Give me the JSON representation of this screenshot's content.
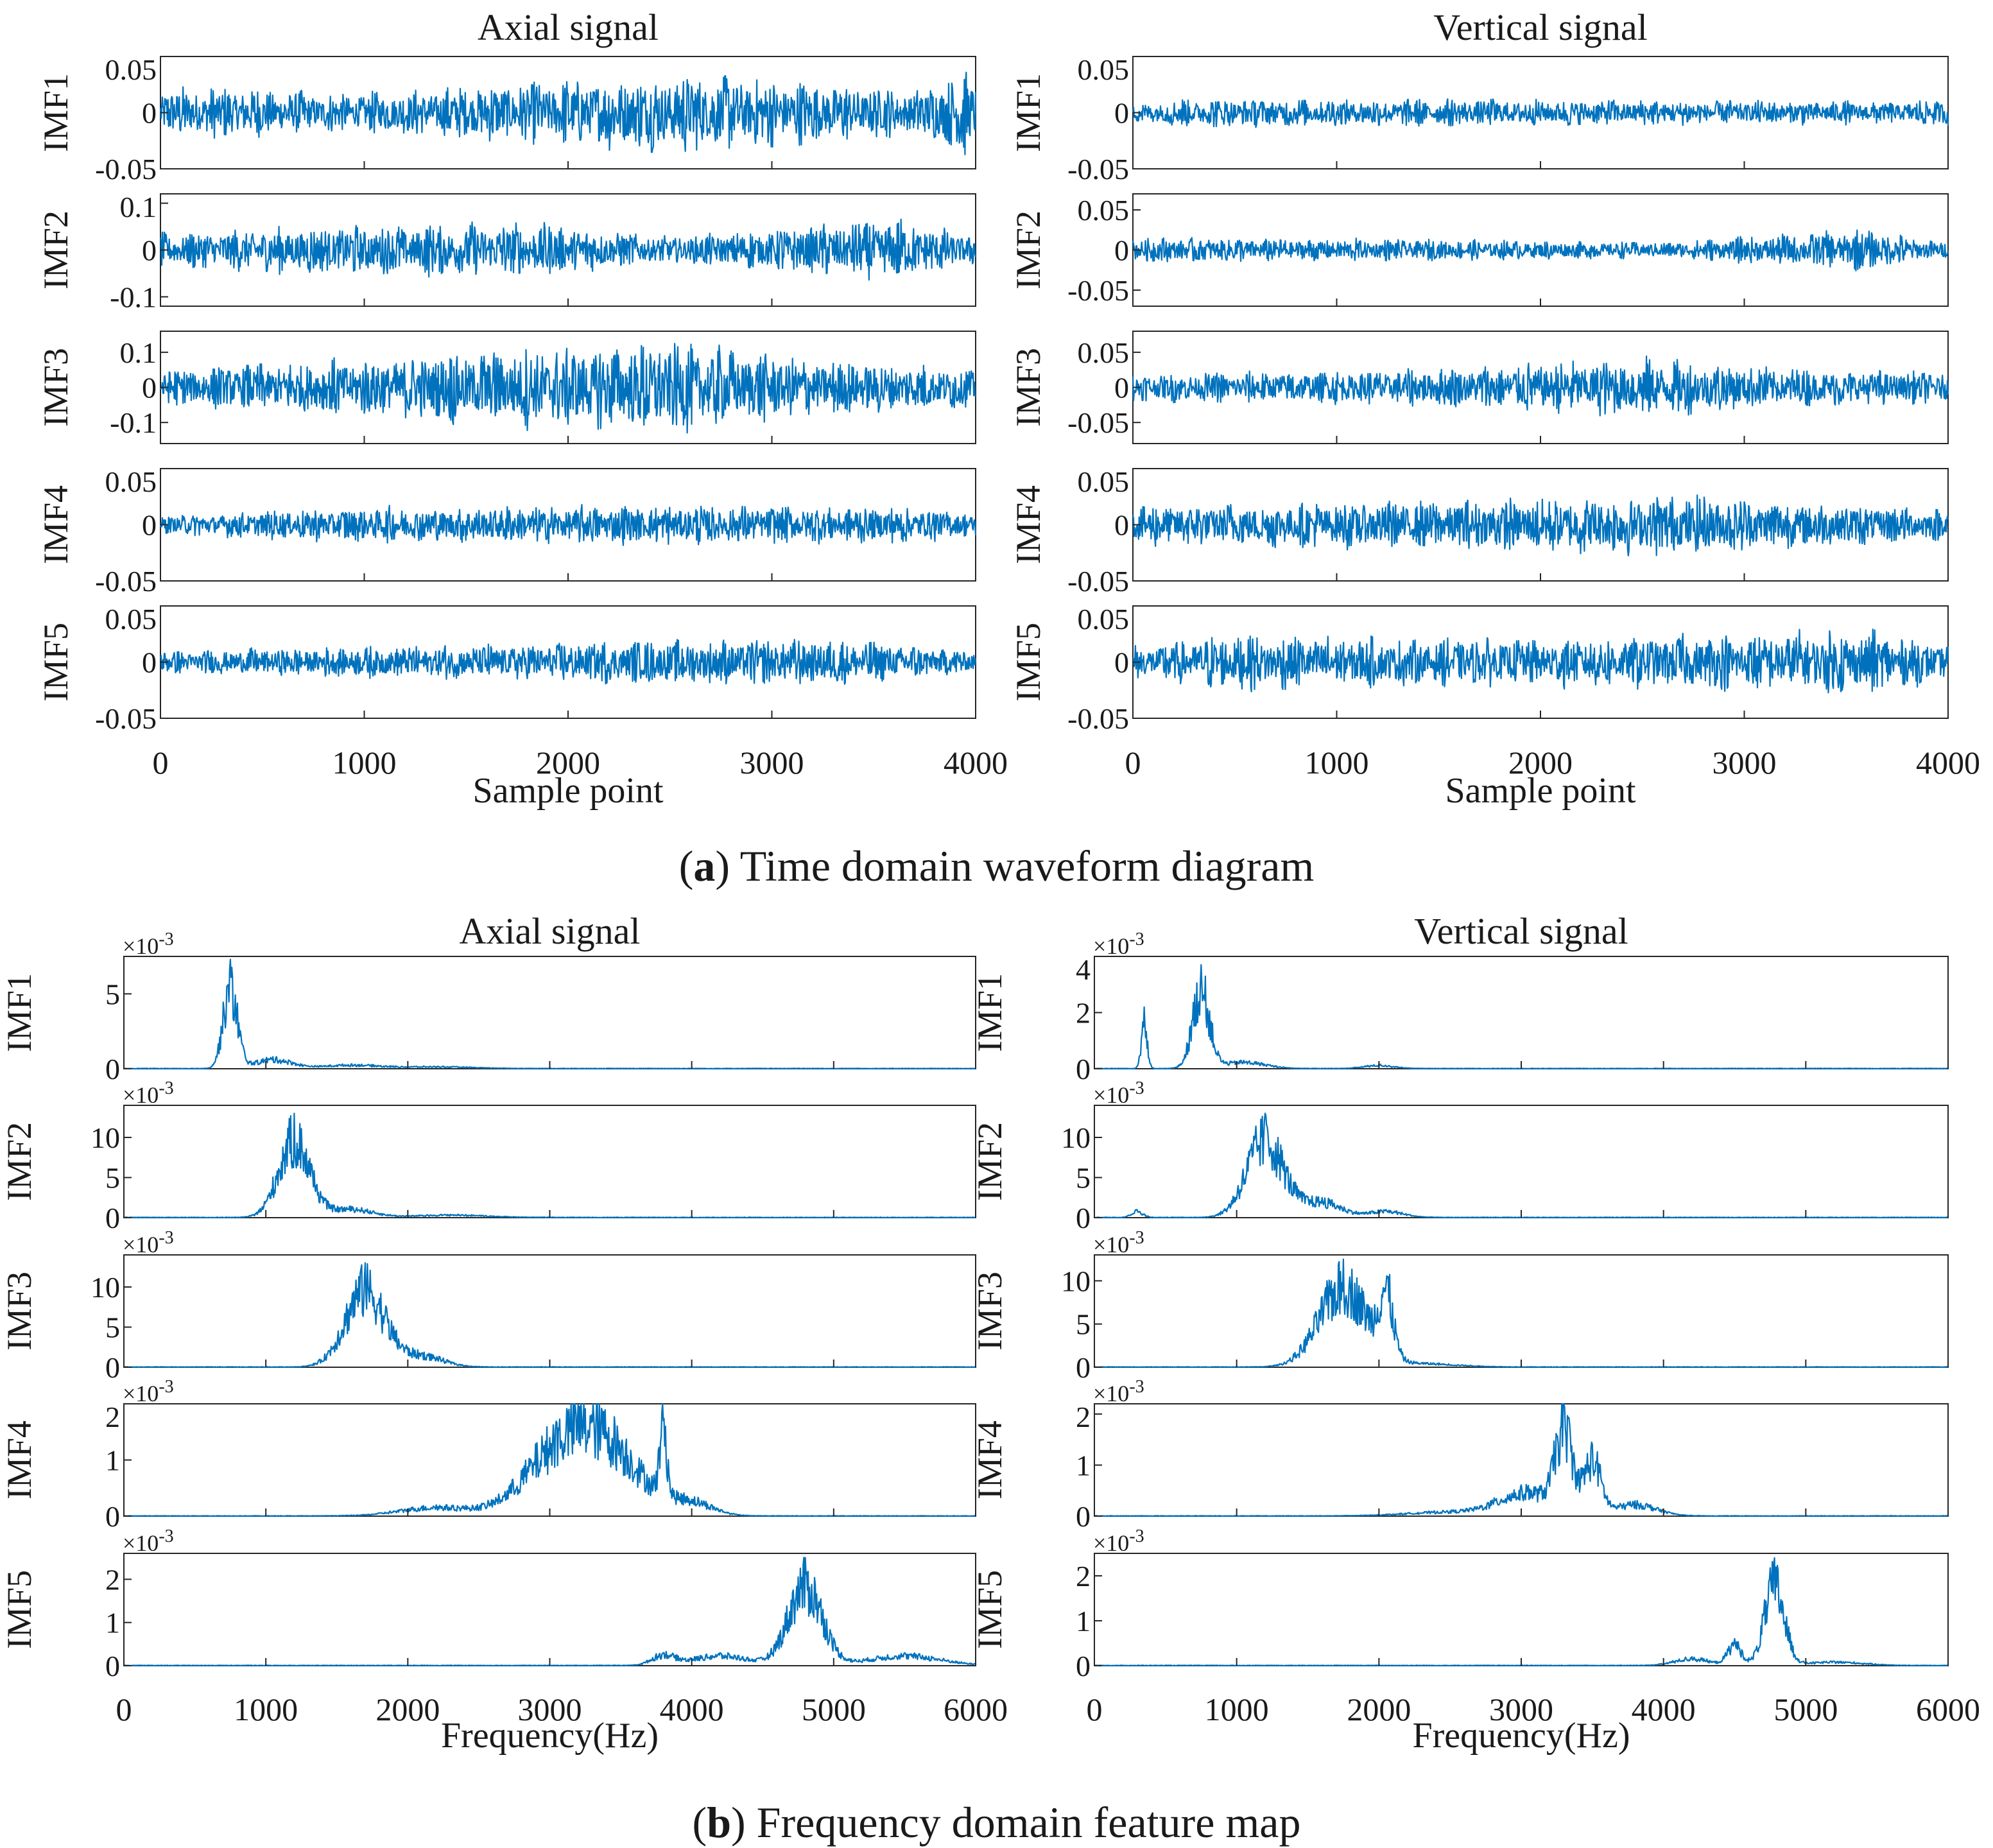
{
  "figure": {
    "caption_a_letter": "a",
    "caption_a_text": "Time domain waveform diagram",
    "caption_b_letter": "b",
    "caption_b_text": "Frequency domain feature map"
  },
  "colors": {
    "trace": "#0072bd",
    "axis": "#262626"
  },
  "chart_data": [
    {
      "id": "time-axial",
      "type": "line",
      "title": "Axial signal",
      "xlabel": "Sample point",
      "xlim": [
        0,
        4000
      ],
      "xticks": [
        0,
        1000,
        2000,
        3000,
        4000
      ],
      "panels": [
        {
          "ylabel": "IMF1",
          "ylim": [
            -0.05,
            0.05
          ],
          "ytick_labels": [
            "0.05",
            "0",
            "-0.05"
          ],
          "ytick_values": [
            0.05,
            0,
            -0.05
          ],
          "amplitude": 0.02,
          "envelope": [
            [
              0,
              1.2
            ],
            [
              350,
              1.3
            ],
            [
              900,
              0.9
            ],
            [
              1600,
              1.4
            ],
            [
              2600,
              2.0
            ],
            [
              3700,
              1.1
            ],
            [
              3950,
              2.2
            ],
            [
              4000,
              1.5
            ]
          ]
        },
        {
          "ylabel": "IMF2",
          "ylim": [
            -0.12,
            0.12
          ],
          "ytick_labels": [
            "0.1",
            "0",
            "-0.1"
          ],
          "ytick_values": [
            0.1,
            0,
            -0.1
          ],
          "amplitude": 0.05,
          "envelope": [
            [
              0,
              0.8
            ],
            [
              600,
              1.1
            ],
            [
              1850,
              1.3
            ],
            [
              2500,
              0.6
            ],
            [
              3600,
              1.5
            ],
            [
              4000,
              0.7
            ]
          ]
        },
        {
          "ylabel": "IMF3",
          "ylim": [
            -0.16,
            0.16
          ],
          "ytick_labels": [
            "0.1",
            "0",
            "-0.1"
          ],
          "ytick_values": [
            0.1,
            0,
            -0.1
          ],
          "amplitude": 0.065,
          "envelope": [
            [
              0,
              0.9
            ],
            [
              550,
              1.2
            ],
            [
              2470,
              2.3
            ],
            [
              3200,
              1.4
            ],
            [
              4000,
              1.0
            ]
          ]
        },
        {
          "ylabel": "IMF4",
          "ylim": [
            -0.05,
            0.05
          ],
          "ytick_labels": [
            "0.05",
            "0",
            "-0.05"
          ],
          "ytick_values": [
            0.05,
            0,
            -0.05
          ],
          "amplitude": 0.012,
          "envelope": [
            [
              0,
              0.8
            ],
            [
              850,
              1.4
            ],
            [
              2300,
              1.6
            ],
            [
              3650,
              1.5
            ],
            [
              4000,
              1.0
            ]
          ]
        },
        {
          "ylabel": "IMF5",
          "ylim": [
            -0.05,
            0.05
          ],
          "ytick_labels": [
            "0.05",
            "0",
            "-0.05"
          ],
          "ytick_values": [
            0.05,
            0,
            -0.05
          ],
          "amplitude": 0.012,
          "envelope": [
            [
              0,
              0.9
            ],
            [
              2480,
              1.8
            ],
            [
              3350,
              2.0
            ],
            [
              4000,
              0.9
            ]
          ]
        }
      ]
    },
    {
      "id": "time-vertical",
      "type": "line",
      "title": "Vertical signal",
      "xlabel": "Sample point",
      "xlim": [
        0,
        4000
      ],
      "xticks": [
        0,
        1000,
        2000,
        3000,
        4000
      ],
      "panels": [
        {
          "ylabel": "IMF1",
          "ylim": [
            -0.05,
            0.05
          ],
          "ytick_labels": [
            "0.05",
            "0",
            "-0.05"
          ],
          "ytick_values": [
            0.05,
            0,
            -0.05
          ],
          "amplitude": 0.009,
          "envelope": [
            [
              0,
              1.0
            ],
            [
              250,
              1.6
            ],
            [
              2600,
              1.4
            ],
            [
              3800,
              1.2
            ],
            [
              4000,
              1.8
            ]
          ]
        },
        {
          "ylabel": "IMF2",
          "ylim": [
            -0.07,
            0.07
          ],
          "ytick_labels": [
            "0.05",
            "0",
            "-0.05"
          ],
          "ytick_values": [
            0.05,
            0,
            -0.05
          ],
          "amplitude": 0.018,
          "envelope": [
            [
              0,
              1.0
            ],
            [
              1400,
              0.8
            ],
            [
              2600,
              0.6
            ],
            [
              3600,
              1.6
            ],
            [
              4000,
              0.5
            ]
          ]
        },
        {
          "ylabel": "IMF3",
          "ylim": [
            -0.08,
            0.08
          ],
          "ytick_labels": [
            "0.05",
            "0",
            "-0.05"
          ],
          "ytick_values": [
            0.05,
            0,
            -0.05
          ],
          "amplitude": 0.024,
          "envelope": [
            [
              0,
              0.9
            ],
            [
              1400,
              1.2
            ],
            [
              2480,
              2.0
            ],
            [
              3200,
              1.3
            ],
            [
              4000,
              1.0
            ]
          ]
        },
        {
          "ylabel": "IMF4",
          "ylim": [
            -0.05,
            0.05
          ],
          "ytick_labels": [
            "0.05",
            "0",
            "-0.05"
          ],
          "ytick_values": [
            0.05,
            0,
            -0.05
          ],
          "amplitude": 0.012,
          "envelope": [
            [
              0,
              1.7
            ],
            [
              1400,
              2.0
            ],
            [
              2700,
              2.6
            ],
            [
              3800,
              1.5
            ],
            [
              4000,
              1.2
            ]
          ]
        },
        {
          "ylabel": "IMF5",
          "ylim": [
            -0.05,
            0.05
          ],
          "ytick_labels": [
            "0.05",
            "0",
            "-0.05"
          ],
          "ytick_values": [
            0.05,
            0,
            -0.05
          ],
          "amplitude": 0.016,
          "envelope": [
            [
              0,
              1.0
            ],
            [
              520,
              1.8
            ],
            [
              1400,
              1.4
            ],
            [
              2500,
              1.6
            ],
            [
              3600,
              2.0
            ],
            [
              4000,
              1.1
            ]
          ]
        }
      ]
    },
    {
      "id": "freq-axial",
      "type": "line",
      "title": "Axial signal",
      "xlabel": "Frequency(Hz)",
      "xlim": [
        0,
        6000
      ],
      "xticks": [
        0,
        1000,
        2000,
        3000,
        4000,
        5000,
        6000
      ],
      "scale_label": "×10",
      "scale_exp": "-3",
      "panels": [
        {
          "ylabel": "IMF1",
          "ylim": [
            0,
            7.5
          ],
          "ytick_labels": [
            "5",
            "0"
          ],
          "ytick_values": [
            5,
            0
          ],
          "peaks": [
            [
              750,
              7.3,
              50
            ],
            [
              1050,
              0.8,
              130
            ],
            [
              1600,
              0.3,
              200
            ],
            [
              2200,
              0.15,
              250
            ]
          ]
        },
        {
          "ylabel": "IMF2",
          "ylim": [
            0,
            14
          ],
          "ytick_labels": [
            "10",
            "5",
            "0"
          ],
          "ytick_values": [
            10,
            5,
            0
          ],
          "peaks": [
            [
              1200,
              13.0,
              110
            ],
            [
              1600,
              1.4,
              150
            ],
            [
              2300,
              0.4,
              250
            ]
          ]
        },
        {
          "ylabel": "IMF3",
          "ylim": [
            0,
            14
          ],
          "ytick_labels": [
            "10",
            "5",
            "0"
          ],
          "ytick_values": [
            10,
            5,
            0
          ],
          "peaks": [
            [
              1700,
              13.0,
              140
            ],
            [
              2100,
              1.8,
              150
            ]
          ]
        },
        {
          "ylabel": "IMF4",
          "ylim": [
            0,
            2
          ],
          "ytick_labels": [
            "2",
            "1",
            "0"
          ],
          "ytick_values": [
            2,
            1,
            0
          ],
          "peaks": [
            [
              2200,
              0.2,
              250
            ],
            [
              3050,
              1.3,
              250
            ],
            [
              3400,
              1.5,
              250
            ],
            [
              3800,
              1.7,
              25
            ],
            [
              4000,
              0.3,
              150
            ]
          ]
        },
        {
          "ylabel": "IMF5",
          "ylim": [
            0,
            2.6
          ],
          "ytick_labels": [
            "2",
            "1",
            "0"
          ],
          "ytick_values": [
            2,
            1,
            0
          ],
          "peaks": [
            [
              3800,
              0.3,
              80
            ],
            [
              4200,
              0.3,
              200
            ],
            [
              4800,
              2.5,
              120
            ],
            [
              5500,
              0.3,
              250
            ]
          ]
        }
      ]
    },
    {
      "id": "freq-vertical",
      "type": "line",
      "title": "Vertical signal",
      "xlabel": "Frequency(Hz)",
      "xlim": [
        0,
        6000
      ],
      "xticks": [
        0,
        1000,
        2000,
        3000,
        4000,
        5000,
        6000
      ],
      "scale_label": "×10",
      "scale_exp": "-3",
      "panels": [
        {
          "ylabel": "IMF1",
          "ylim": [
            0,
            4
          ],
          "ytick_labels": [
            "4",
            "2",
            "0"
          ],
          "ytick_values": [
            4,
            2,
            0
          ],
          "peaks": [
            [
              350,
              2.2,
              20
            ],
            [
              750,
              3.7,
              60
            ],
            [
              1050,
              0.3,
              150
            ],
            [
              2000,
              0.15,
              100
            ]
          ]
        },
        {
          "ylabel": "IMF2",
          "ylim": [
            0,
            14
          ],
          "ytick_labels": [
            "10",
            "5",
            "0"
          ],
          "ytick_values": [
            10,
            5,
            0
          ],
          "peaks": [
            [
              300,
              1.0,
              40
            ],
            [
              1200,
              13.0,
              130
            ],
            [
              1600,
              2.5,
              140
            ],
            [
              2050,
              1.0,
              120
            ]
          ]
        },
        {
          "ylabel": "IMF3",
          "ylim": [
            0,
            13
          ],
          "ytick_labels": [
            "10",
            "5",
            "0"
          ],
          "ytick_values": [
            10,
            5,
            0
          ],
          "peaks": [
            [
              1750,
              12.5,
              170
            ],
            [
              2050,
              9.5,
              50
            ],
            [
              2300,
              0.5,
              250
            ]
          ]
        },
        {
          "ylabel": "IMF4",
          "ylim": [
            0,
            2.2
          ],
          "ytick_labels": [
            "2",
            "1",
            "0"
          ],
          "ytick_values": [
            2,
            1,
            0
          ],
          "peaks": [
            [
              3050,
              0.6,
              200
            ],
            [
              3300,
              2.1,
              60
            ],
            [
              3500,
              1.4,
              60
            ],
            [
              3800,
              0.3,
              150
            ],
            [
              2500,
              0.1,
              300
            ]
          ]
        },
        {
          "ylabel": "IMF5",
          "ylim": [
            0,
            2.5
          ],
          "ytick_labels": [
            "2",
            "1",
            "0"
          ],
          "ytick_values": [
            2,
            1,
            0
          ],
          "peaks": [
            [
              4200,
              0.2,
              120
            ],
            [
              4500,
              0.6,
              50
            ],
            [
              4780,
              2.4,
              70
            ],
            [
              5200,
              0.1,
              200
            ]
          ]
        }
      ]
    }
  ]
}
